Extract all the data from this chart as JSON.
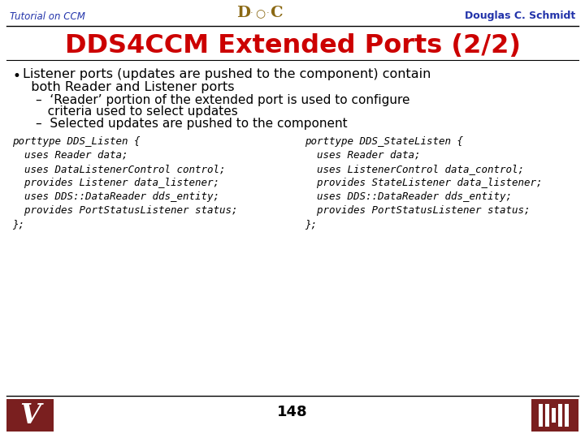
{
  "title": "DDS4CCM Extended Ports (2/2)",
  "title_color": "#cc0000",
  "header_left": "Tutorial on CCM",
  "header_right": "Douglas C. Schmidt",
  "header_color": "#2233aa",
  "bullet_main": "Listener ports (updates are pushed to the component) contain\n  both Reader and Listener ports",
  "sub_bullet_1a": "–  ‘Reader’ portion of the extended port is used to configure",
  "sub_bullet_1b": "   criteria used to select updates",
  "sub_bullet_2": "–  Selected updates are pushed to the component",
  "page_number": "148",
  "code_left": [
    "porttype DDS_Listen {",
    "  uses Reader data;",
    "  uses DataListenerControl control;",
    "  provides Listener data_listener;",
    "  uses DDS::DataReader dds_entity;",
    "  provides PortStatusListener status;",
    "};"
  ],
  "code_right": [
    "porttype DDS_StateListen {",
    "  uses Reader data;",
    "  uses ListenerControl data_control;",
    "  provides StateListener data_listener;",
    "  uses DDS::DataReader dds_entity;",
    "  provides PortStatusListener status;",
    "};"
  ],
  "vanderbilt_color": "#7a1f1f",
  "isis_color": "#7a1f1f",
  "background_color": "#ffffff",
  "text_color": "#000000",
  "code_color": "#000000",
  "doc_color": "#8B6914"
}
